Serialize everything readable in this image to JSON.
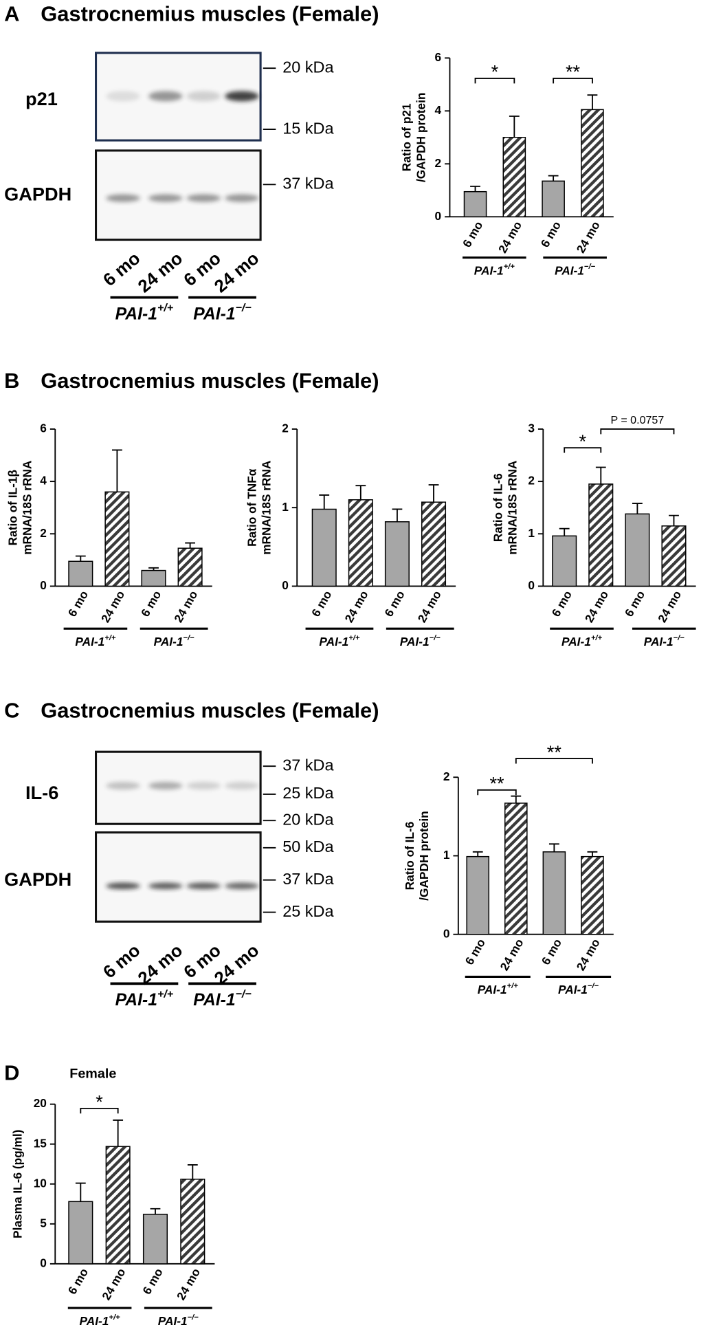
{
  "panels": [
    {
      "letter": "A",
      "title": "Gastrocnemius muscles (Female)"
    },
    {
      "letter": "B",
      "title": "Gastrocnemius muscles (Female)"
    },
    {
      "letter": "C",
      "title": "Gastrocnemius muscles (Female)"
    },
    {
      "letter": "D"
    }
  ],
  "blots": [
    {
      "rows": [
        {
          "label": "p21",
          "markers": [
            "20 kDa",
            "15 kDa"
          ]
        },
        {
          "label": "GAPDH",
          "markers": [
            "37 kDa"
          ]
        }
      ],
      "lanes": [
        "6 mo",
        "24 mo",
        "6 mo",
        "24 mo"
      ],
      "groups": [
        {
          "text": "PAI-1",
          "sup": "+/+"
        },
        {
          "text": "PAI-1",
          "sup": "−/−"
        }
      ]
    },
    {
      "rows": [
        {
          "label": "IL-6",
          "markers": [
            "37 kDa",
            "25 kDa",
            "20 kDa"
          ]
        },
        {
          "label": "GAPDH",
          "markers": [
            "50 kDa",
            "37 kDa",
            "25 kDa"
          ]
        }
      ],
      "lanes": [
        "6 mo",
        "24 mo",
        "6 mo",
        "24 mo"
      ],
      "groups": [
        {
          "text": "PAI-1",
          "sup": "+/+"
        },
        {
          "text": "PAI-1",
          "sup": "−/−"
        }
      ]
    }
  ],
  "chart_data": [
    {
      "type": "bar",
      "ylabel": [
        "Ratio of p21",
        "/GAPDH protein"
      ],
      "categories": [
        "6 mo",
        "24 mo",
        "6 mo",
        "24 mo"
      ],
      "values": [
        0.95,
        3.0,
        1.35,
        4.05
      ],
      "errors": [
        0.2,
        0.8,
        0.2,
        0.55
      ],
      "groups": [
        {
          "text": "PAI-1",
          "sup": "+/+"
        },
        {
          "text": "PAI-1",
          "sup": "−/−"
        }
      ],
      "ylim": [
        0,
        6
      ],
      "yticks": [
        0,
        2,
        4,
        6
      ],
      "color": "#a6a6a6",
      "annotations": [
        "*",
        "**"
      ]
    },
    {
      "type": "bar",
      "ylabel": [
        "Ratio of IL-1β",
        "mRNA/18S rRNA"
      ],
      "categories": [
        "6 mo",
        "24 mo",
        "6 mo",
        "24 mo"
      ],
      "values": [
        0.95,
        3.6,
        0.6,
        1.45
      ],
      "errors": [
        0.2,
        1.6,
        0.1,
        0.2
      ],
      "groups": [
        {
          "text": "PAI-1",
          "sup": "+/+"
        },
        {
          "text": "PAI-1",
          "sup": "−/−"
        }
      ],
      "ylim": [
        0,
        6
      ],
      "yticks": [
        0,
        2,
        4,
        6
      ],
      "color": "#a6a6a6",
      "annotations": []
    },
    {
      "type": "bar",
      "ylabel": [
        "Ratio of TNFα",
        "mRNA/18S rRNA"
      ],
      "categories": [
        "6 mo",
        "24 mo",
        "6 mo",
        "24 mo"
      ],
      "values": [
        0.98,
        1.1,
        0.82,
        1.07
      ],
      "errors": [
        0.18,
        0.18,
        0.16,
        0.22
      ],
      "groups": [
        {
          "text": "PAI-1",
          "sup": "+/+"
        },
        {
          "text": "PAI-1",
          "sup": "−/−"
        }
      ],
      "ylim": [
        0,
        2
      ],
      "yticks": [
        0,
        1,
        2
      ],
      "color": "#a6a6a6",
      "annotations": []
    },
    {
      "type": "bar",
      "ylabel": [
        "Ratio of IL-6",
        "mRNA/18S rRNA"
      ],
      "categories": [
        "6 mo",
        "24 mo",
        "6 mo",
        "24 mo"
      ],
      "values": [
        0.96,
        1.95,
        1.38,
        1.15
      ],
      "errors": [
        0.14,
        0.32,
        0.2,
        0.2
      ],
      "groups": [
        {
          "text": "PAI-1",
          "sup": "+/+"
        },
        {
          "text": "PAI-1",
          "sup": "−/−"
        }
      ],
      "ylim": [
        0,
        3
      ],
      "yticks": [
        0,
        1,
        2,
        3
      ],
      "color": "#a6a6a6",
      "annotations": [
        "*",
        "P = 0.0757"
      ]
    },
    {
      "type": "bar",
      "ylabel": [
        "Ratio of IL-6",
        "/GAPDH protein"
      ],
      "categories": [
        "6 mo",
        "24 mo",
        "6 mo",
        "24 mo"
      ],
      "values": [
        0.99,
        1.67,
        1.05,
        0.99
      ],
      "errors": [
        0.06,
        0.09,
        0.1,
        0.06
      ],
      "groups": [
        {
          "text": "PAI-1",
          "sup": "+/+"
        },
        {
          "text": "PAI-1",
          "sup": "−/−"
        }
      ],
      "ylim": [
        0,
        2
      ],
      "yticks": [
        0,
        1,
        2
      ],
      "color": "#a6a6a6",
      "annotations": [
        "**",
        "**"
      ]
    },
    {
      "type": "bar",
      "title": "Female",
      "ylabel": [
        "Plasma IL-6 (pg/ml)"
      ],
      "categories": [
        "6 mo",
        "24 mo",
        "6 mo",
        "24 mo"
      ],
      "values": [
        7.8,
        14.7,
        6.2,
        10.6
      ],
      "errors": [
        2.3,
        3.3,
        0.7,
        1.8
      ],
      "groups": [
        {
          "text": "PAI-1",
          "sup": "+/+"
        },
        {
          "text": "PAI-1",
          "sup": "−/−"
        }
      ],
      "ylim": [
        0,
        20
      ],
      "yticks": [
        0,
        5,
        10,
        15,
        20
      ],
      "color": "#a6a6a6",
      "annotations": [
        "*"
      ]
    }
  ]
}
